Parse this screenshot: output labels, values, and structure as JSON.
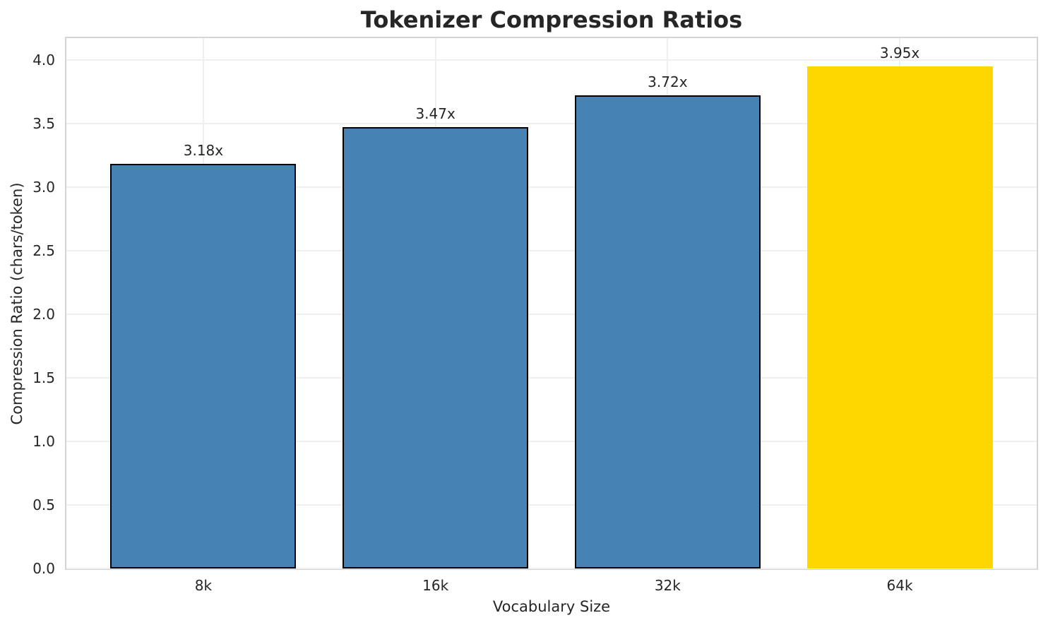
{
  "chart_data": {
    "type": "bar",
    "title": "Tokenizer Compression Ratios",
    "xlabel": "Vocabulary Size",
    "ylabel": "Compression Ratio (chars/token)",
    "categories": [
      "8k",
      "16k",
      "32k",
      "64k"
    ],
    "values": [
      3.18,
      3.47,
      3.72,
      3.95
    ],
    "bar_labels": [
      "3.18x",
      "3.47x",
      "3.72x",
      "3.95x"
    ],
    "highlight_index": 3,
    "bar_width_fraction": 0.8,
    "ylim": [
      0,
      4.17
    ],
    "yticks": [
      0,
      0.5,
      1,
      1.5,
      2,
      2.5,
      3,
      3.5,
      4
    ],
    "ytick_labels": [
      "0.0",
      "0.5",
      "1.0",
      "1.5",
      "2.0",
      "2.5",
      "3.0",
      "3.5",
      "4.0"
    ],
    "grid": true,
    "legend": "none",
    "colors": {
      "bar": "#4682B4",
      "highlight_bar": "#FFD700",
      "bar_edge": "#000000",
      "grid": "#efefef",
      "spine": "#d4d4d4",
      "text": "#262626"
    }
  }
}
